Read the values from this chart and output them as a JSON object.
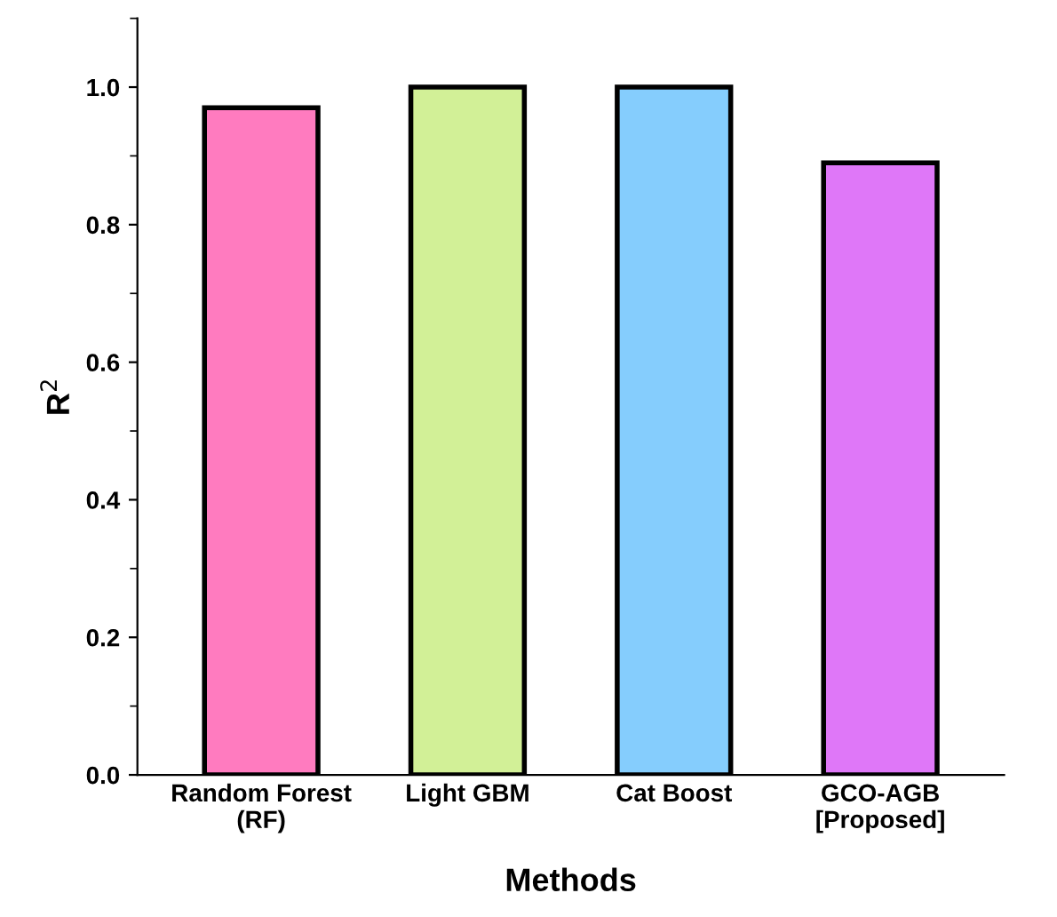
{
  "chart_data": {
    "type": "bar",
    "xlabel": "Methods",
    "ylabel": "R$^{2}$",
    "categories": [
      "Random Forest\n(RF)",
      "Light GBM",
      "Cat Boost",
      "GCO-AGB\n[Proposed]"
    ],
    "values": [
      0.97,
      1.0,
      1.0,
      0.89
    ],
    "colors": [
      "#ff7bbf",
      "#d2f097",
      "#85cdfd",
      "#df77f8"
    ],
    "ylim": [
      0,
      1.1
    ],
    "yticks": [
      {
        "value": 0,
        "label": "0.0"
      },
      0.2,
      0.4,
      0.6,
      0.8,
      {
        "value": 1,
        "label": "1.0"
      }
    ],
    "grid": false,
    "legend": false
  }
}
